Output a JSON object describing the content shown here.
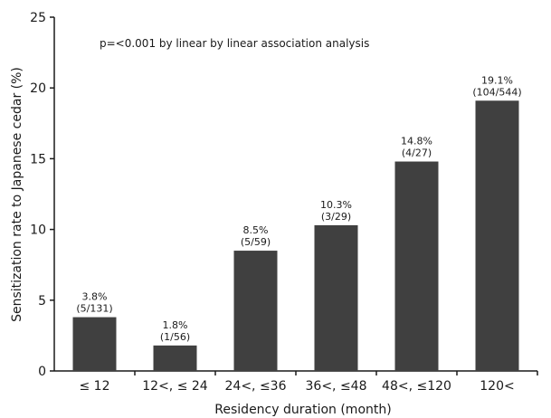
{
  "chart_data": {
    "type": "bar",
    "title": "",
    "xlabel": "Residency duration (month)",
    "ylabel": "Sensitization rate to Japanese cedar (%)",
    "ylim": [
      0,
      25
    ],
    "yticks": [
      0,
      5,
      10,
      15,
      20,
      25
    ],
    "grid": false,
    "annotation": "p=<0.001 by linear by linear association analysis",
    "categories": [
      "≤ 12",
      "12<, ≤ 24",
      "24<, ≤36",
      "36<, ≤48",
      "48<, ≤120",
      "120<"
    ],
    "values": [
      3.8,
      1.8,
      8.5,
      10.3,
      14.8,
      19.1
    ],
    "value_labels": [
      "3.8%",
      "1.8%",
      "8.5%",
      "10.3%",
      "14.8%",
      "19.1%"
    ],
    "count_labels": [
      "(5/131)",
      "(1/56)",
      "(5/59)",
      "(3/29)",
      "(4/27)",
      "(104/544)"
    ],
    "bar_color": "#404040",
    "axis_color": "#1a1a1a"
  }
}
